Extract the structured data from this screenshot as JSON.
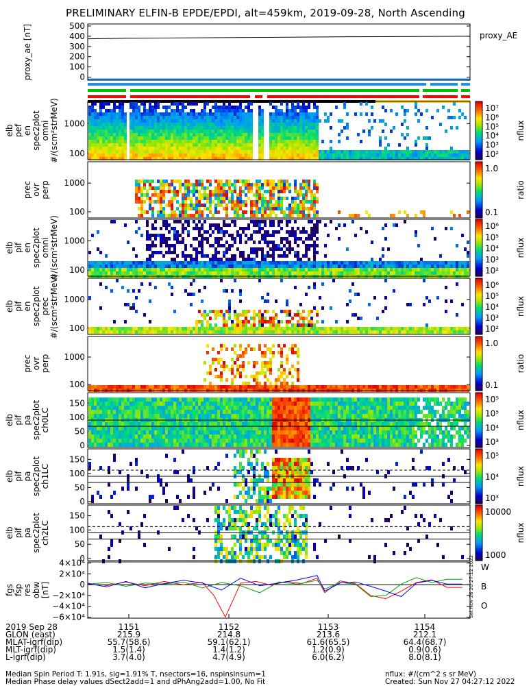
{
  "title": "PRELIMINARY ELFIN-B EPDE/EPDI, alt=459km, 2019-09-28, North Ascending",
  "chart_data": [
    {
      "type": "line",
      "panel": "proxy_ae",
      "ylabel": "proxy_ae [nT]",
      "yticks": [
        "500",
        "400",
        "300",
        "200",
        "100",
        "0"
      ],
      "ylim": [
        -30,
        520
      ],
      "legend": "proxy_AE",
      "series": [
        {
          "name": "proxy_AE",
          "x": [
            0,
            0.1,
            0.3,
            0.5,
            0.7,
            1.0
          ],
          "values": [
            375,
            380,
            385,
            390,
            395,
            400
          ]
        }
      ]
    },
    {
      "type": "heatmap",
      "panel": "elb_pef_en_spec2plot_omni",
      "ylabel": [
        "elb",
        "pef",
        "en",
        "spec2plot",
        "omni",
        "#/(scm²strMeV)"
      ],
      "yticks": [
        "1000",
        "100"
      ],
      "scale": "log",
      "colorbar": {
        "label": "nflux",
        "ticks": [
          "10⁷",
          "10⁶",
          "10⁵",
          "10⁴",
          "10³",
          "10²"
        ]
      }
    },
    {
      "type": "heatmap",
      "panel": "elb_pef_prec_ovr_perp",
      "ylabel": [
        "prec",
        "ovr",
        "perp"
      ],
      "yticks": [
        "1000",
        "100"
      ],
      "scale": "log",
      "colorbar": {
        "label": "ratio",
        "ticks": [
          "1.0",
          "0.1"
        ]
      }
    },
    {
      "type": "heatmap",
      "panel": "elb_pif_en_spec2plot_omni",
      "ylabel": [
        "elb",
        "pif",
        "en",
        "spec2plot",
        "omni",
        "#/(scm²strMeV)"
      ],
      "yticks": [
        "1000",
        "100"
      ],
      "scale": "log",
      "colorbar": {
        "label": "nflux",
        "ticks": [
          "10⁶",
          "10⁵",
          "10⁴",
          "10³",
          "10²"
        ]
      }
    },
    {
      "type": "heatmap",
      "panel": "elb_pif_en_spec2plot_prec",
      "ylabel": [
        "elb",
        "pif",
        "en",
        "spec2plot",
        "prec",
        "#/(scm²strMeV)"
      ],
      "yticks": [
        "1000",
        "100"
      ],
      "scale": "log",
      "colorbar": {
        "label": "nflux",
        "ticks": [
          "10⁶",
          "10⁵",
          "10⁴",
          "10³",
          "10²"
        ]
      }
    },
    {
      "type": "heatmap",
      "panel": "elb_pif_prec_ovr_perp",
      "ylabel": [
        "prec",
        "ovr",
        "perp"
      ],
      "yticks": [
        "1000",
        "100"
      ],
      "scale": "log",
      "colorbar": {
        "label": "ratio",
        "ticks": [
          "1.0",
          "0.1"
        ]
      }
    },
    {
      "type": "heatmap",
      "panel": "elb_pif_pa_spec2plot_ch0LC",
      "ylabel": [
        "elb",
        "pif",
        "pa",
        "spec2plot",
        "ch0LC"
      ],
      "yticks": [
        "150",
        "100",
        "50",
        "0"
      ],
      "ylim": [
        0,
        180
      ],
      "colorbar": {
        "label": "nflux",
        "ticks": [
          "10⁵",
          "10⁵",
          "10⁴",
          "10³"
        ]
      }
    },
    {
      "type": "heatmap",
      "panel": "elb_pif_pa_spec2plot_ch1LC",
      "ylabel": [
        "elb",
        "pif",
        "pa",
        "spec2plot",
        "ch1LC"
      ],
      "yticks": [
        "150",
        "100",
        "50",
        "0"
      ],
      "ylim": [
        0,
        180
      ],
      "colorbar": {
        "label": "nflux",
        "ticks": [
          "10⁵",
          "10⁴",
          "10³"
        ]
      }
    },
    {
      "type": "heatmap",
      "panel": "elb_pif_pa_spec2plot_ch2LC",
      "ylabel": [
        "elb",
        "pif",
        "pa",
        "spec2plot",
        "ch2LC"
      ],
      "yticks": [
        "150",
        "100",
        "50",
        "0"
      ],
      "ylim": [
        0,
        180
      ],
      "colorbar": {
        "label": "nflux",
        "ticks": [
          "10000",
          "1000"
        ]
      }
    },
    {
      "type": "line",
      "panel": "fgs_fsp_res_obw",
      "ylabel": [
        "fgs",
        "fsp",
        "res",
        "obw",
        "[nT]"
      ],
      "yticks": [
        "4×10⁴",
        "2×10⁴",
        "0",
        "−2×10⁴",
        "−4×10⁴",
        "−6×10⁴"
      ],
      "ylim": [
        -62000,
        42000
      ],
      "series": [
        {
          "name": "W",
          "color": "#ff0000",
          "x": [
            0,
            0.04,
            0.1,
            0.15,
            0.2,
            0.25,
            0.3,
            0.33,
            0.36,
            0.4,
            0.44,
            0.48,
            0.52,
            0.56,
            0.6,
            0.62,
            0.66,
            0.7,
            0.74,
            0.78,
            0.82,
            0.86,
            0.9,
            0.94,
            0.98
          ],
          "values": [
            3000,
            -3000,
            5000,
            -2000,
            6000,
            0,
            4000,
            -20000,
            -60000,
            3000,
            6000,
            -1000,
            6000,
            2000,
            12000,
            -15000,
            7000,
            2000,
            -20000,
            -26000,
            -12000,
            4000,
            9000,
            -5000,
            -5000
          ]
        },
        {
          "name": "B",
          "color": "#00a000",
          "x": [
            0,
            0.05,
            0.1,
            0.15,
            0.2,
            0.25,
            0.3,
            0.35,
            0.4,
            0.45,
            0.5,
            0.55,
            0.6,
            0.62,
            0.66,
            0.7,
            0.74,
            0.78,
            0.82,
            0.86,
            0.9,
            0.94,
            0.98
          ],
          "values": [
            1000,
            4000,
            -3000,
            3000,
            1000,
            5000,
            -6000,
            4000,
            -2000,
            -15000,
            5000,
            1000,
            8000,
            -8000,
            4000,
            1000,
            -22000,
            -20000,
            1000,
            13000,
            4000,
            10000,
            10000
          ]
        },
        {
          "name": "O",
          "color": "#0000ff",
          "x": [
            0,
            0.05,
            0.1,
            0.15,
            0.2,
            0.25,
            0.3,
            0.35,
            0.4,
            0.45,
            0.5,
            0.55,
            0.6,
            0.62,
            0.66,
            0.7,
            0.74,
            0.78,
            0.82,
            0.86,
            0.9,
            0.94,
            0.98
          ],
          "values": [
            2000,
            -4000,
            6000,
            -6000,
            2000,
            8000,
            3000,
            -10000,
            12000,
            -2000,
            3000,
            9000,
            17000,
            -12000,
            3000,
            5000,
            -3000,
            -12000,
            -22000,
            3000,
            8000,
            1000,
            1000
          ]
        }
      ]
    }
  ],
  "side_label": "Sat Nov 26 20:27:12 2022",
  "axis": {
    "rows": [
      {
        "label": "2019 Sep 28",
        "values": [
          "1151",
          "1152",
          "1153",
          "1154"
        ]
      },
      {
        "label": "GLON (east)",
        "values": [
          "215.9",
          "214.8",
          "213.6",
          "212.1"
        ]
      },
      {
        "label": "MLAT-igrf(dip)",
        "values": [
          "55.7(58.6)",
          "59.1(62.1)",
          "61.6(65.5)",
          "64.4(68.7)"
        ]
      },
      {
        "label": "MLT-igrf(dip)",
        "values": [
          "1.5(1.4)",
          "1.4(1.2)",
          "1.2(0.9)",
          "0.9(0.6)"
        ]
      },
      {
        "label": "L-igrf(dip)",
        "values": [
          "3.7(4.0)",
          "4.7(4.9)",
          "6.0(6.2)",
          "8.0(8.1)"
        ]
      }
    ]
  },
  "footer": {
    "line1": "Median Spin Period T: 1.91s, sig=1.91% T, nsectors=16, nspinsinsum=1",
    "line2": "Median Phase delay values dSect2add=1 and dPhAng2add=1.00, No Fit",
    "units": "nflux: #/(cm^2 s sr MeV)",
    "created": "Created: Sun Nov 27 04:27:12 2022"
  }
}
